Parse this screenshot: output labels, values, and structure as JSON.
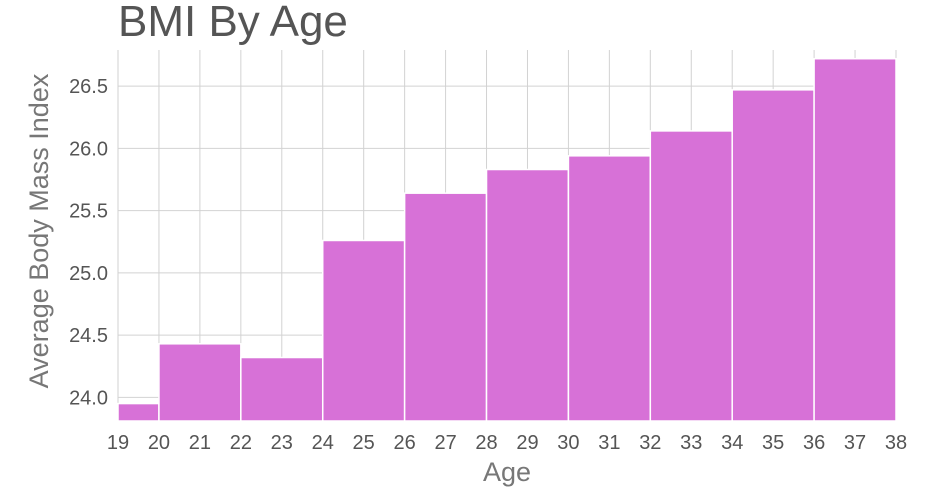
{
  "chart_data": {
    "type": "bar",
    "title": "BMI By Age",
    "xlabel": "Age",
    "ylabel": "Average Body Mass Index",
    "bin_edges": [
      19,
      20,
      22,
      24,
      26,
      28,
      30,
      32,
      34,
      36,
      38
    ],
    "values": [
      23.95,
      24.43,
      24.32,
      25.26,
      25.64,
      25.83,
      25.94,
      26.14,
      26.47,
      26.72
    ],
    "xticks": [
      "19",
      "20",
      "21",
      "22",
      "23",
      "24",
      "25",
      "26",
      "27",
      "28",
      "29",
      "30",
      "31",
      "32",
      "33",
      "34",
      "35",
      "36",
      "37",
      "38"
    ],
    "yticks": [
      "24.0",
      "24.5",
      "25.0",
      "25.5",
      "26.0",
      "26.5"
    ],
    "ylim": [
      23.81,
      26.79
    ],
    "xlim": [
      19,
      38
    ],
    "grid": true,
    "bar_color": "#d771d7",
    "grid_color": "#d2d2d2"
  }
}
